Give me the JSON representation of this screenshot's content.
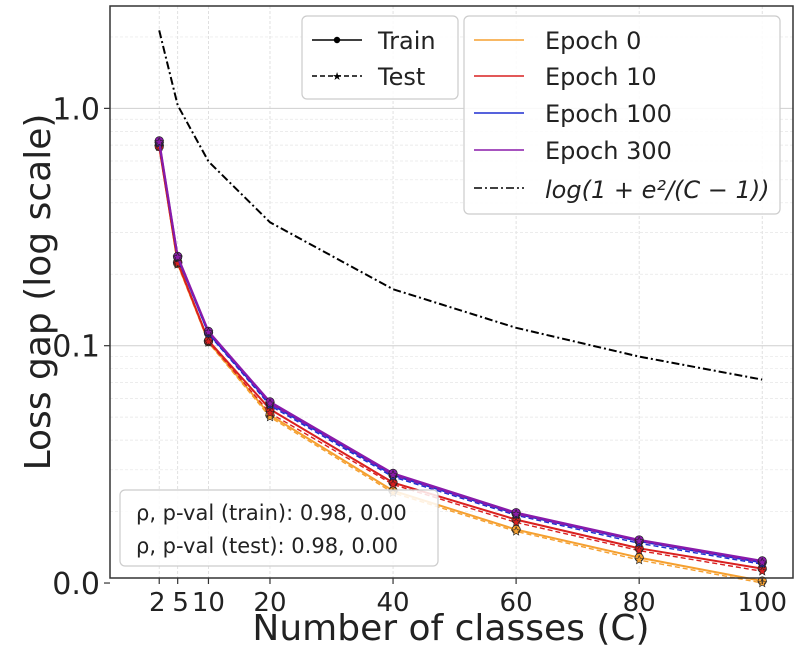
{
  "chart_data": {
    "type": "line",
    "xlabel": "Number of classes  (C)",
    "ylabel": "Loss gap (log scale)",
    "x": [
      2,
      5,
      10,
      20,
      40,
      60,
      80,
      100
    ],
    "x_ticks": [
      2,
      5,
      10,
      20,
      40,
      60,
      80,
      100
    ],
    "xlim": [
      -6,
      105
    ],
    "y_scale": "log",
    "ylim": [
      0.0105,
      2.7
    ],
    "y_ticks": [
      {
        "value": 1.0,
        "label": "1.0"
      },
      {
        "value": 0.1,
        "label": "0.1"
      },
      {
        "value": 0.01,
        "label": "0.0"
      }
    ],
    "grid": true,
    "series": [
      {
        "name": "Epoch 0",
        "color": "#f5a030",
        "train": [
          0.7,
          0.222,
          0.104,
          0.051,
          0.0245,
          0.0168,
          0.0128,
          0.0102
        ],
        "test": [
          0.69,
          0.22,
          0.103,
          0.05,
          0.024,
          0.0165,
          0.0125,
          0.01
        ]
      },
      {
        "name": "Epoch 10",
        "color": "#d92020",
        "train": [
          0.69,
          0.225,
          0.105,
          0.054,
          0.0265,
          0.0185,
          0.014,
          0.0115
        ],
        "test": [
          0.69,
          0.222,
          0.104,
          0.052,
          0.026,
          0.018,
          0.0137,
          0.0112
        ]
      },
      {
        "name": "Epoch 100",
        "color": "#1f2fd0",
        "train": [
          0.72,
          0.236,
          0.113,
          0.057,
          0.0285,
          0.0196,
          0.015,
          0.0122
        ],
        "test": [
          0.71,
          0.234,
          0.112,
          0.056,
          0.028,
          0.0193,
          0.0147,
          0.012
        ]
      },
      {
        "name": "Epoch 300",
        "color": "#8a1aaa",
        "train": [
          0.73,
          0.238,
          0.115,
          0.058,
          0.029,
          0.0198,
          0.0152,
          0.0124
        ],
        "test": [
          0.72,
          0.236,
          0.114,
          0.057,
          0.0285,
          0.0195,
          0.015,
          0.0122
        ]
      }
    ],
    "reference": {
      "name": "log(1 + e²/(C − 1))",
      "color": "#000000",
      "style": "dash-dot",
      "x": [
        2,
        5,
        10,
        20,
        40,
        60,
        80,
        100
      ],
      "values": [
        2.13,
        1.03,
        0.597,
        0.331,
        0.173,
        0.119,
        0.09,
        0.072
      ]
    },
    "legend_markers": [
      {
        "name": "Train",
        "style": "solid",
        "marker": "circle"
      },
      {
        "name": "Test",
        "style": "dashed",
        "marker": "star"
      }
    ],
    "legend_placement": "top-right",
    "annotations": [
      "ρ, p-val (train):  0.98, 0.00",
      "ρ, p-val (test):  0.98, 0.00"
    ]
  }
}
